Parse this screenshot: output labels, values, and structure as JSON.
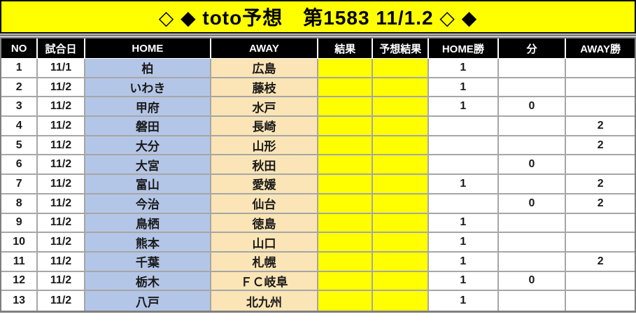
{
  "title": "◇ ◆ toto予想　第1583 11/1.2 ◇ ◆",
  "table": {
    "columns": [
      "NO",
      "試合日",
      "HOME",
      "AWAY",
      "結果",
      "予想結果",
      "HOME勝",
      "分",
      "AWAY勝"
    ],
    "rows": [
      {
        "no": "1",
        "date": "11/1",
        "home": "柏",
        "away": "広島",
        "result": "",
        "prediction": "",
        "home_win": "1",
        "draw": "",
        "away_win": ""
      },
      {
        "no": "2",
        "date": "11/2",
        "home": "いわき",
        "away": "藤枝",
        "result": "",
        "prediction": "",
        "home_win": "1",
        "draw": "",
        "away_win": ""
      },
      {
        "no": "3",
        "date": "11/2",
        "home": "甲府",
        "away": "水戸",
        "result": "",
        "prediction": "",
        "home_win": "1",
        "draw": "0",
        "away_win": ""
      },
      {
        "no": "4",
        "date": "11/2",
        "home": "磐田",
        "away": "長崎",
        "result": "",
        "prediction": "",
        "home_win": "",
        "draw": "",
        "away_win": "2"
      },
      {
        "no": "5",
        "date": "11/2",
        "home": "大分",
        "away": "山形",
        "result": "",
        "prediction": "",
        "home_win": "",
        "draw": "",
        "away_win": "2"
      },
      {
        "no": "6",
        "date": "11/2",
        "home": "大宮",
        "away": "秋田",
        "result": "",
        "prediction": "",
        "home_win": "",
        "draw": "0",
        "away_win": ""
      },
      {
        "no": "7",
        "date": "11/2",
        "home": "富山",
        "away": "愛媛",
        "result": "",
        "prediction": "",
        "home_win": "1",
        "draw": "",
        "away_win": "2"
      },
      {
        "no": "8",
        "date": "11/2",
        "home": "今治",
        "away": "仙台",
        "result": "",
        "prediction": "",
        "home_win": "",
        "draw": "0",
        "away_win": "2"
      },
      {
        "no": "9",
        "date": "11/2",
        "home": "鳥栖",
        "away": "徳島",
        "result": "",
        "prediction": "",
        "home_win": "1",
        "draw": "",
        "away_win": ""
      },
      {
        "no": "10",
        "date": "11/2",
        "home": "熊本",
        "away": "山口",
        "result": "",
        "prediction": "",
        "home_win": "1",
        "draw": "",
        "away_win": ""
      },
      {
        "no": "11",
        "date": "11/2",
        "home": "千葉",
        "away": "札幌",
        "result": "",
        "prediction": "",
        "home_win": "1",
        "draw": "",
        "away_win": "2"
      },
      {
        "no": "12",
        "date": "11/2",
        "home": "栃木",
        "away": "ＦＣ岐阜",
        "result": "",
        "prediction": "",
        "home_win": "1",
        "draw": "0",
        "away_win": ""
      },
      {
        "no": "13",
        "date": "11/2",
        "home": "八戸",
        "away": "北九州",
        "result": "",
        "prediction": "",
        "home_win": "1",
        "draw": "",
        "away_win": ""
      }
    ]
  },
  "colors": {
    "banner_bg": "#FFFF00",
    "banner_border": "#000000",
    "divider": "#808080",
    "header_bg": "#000000",
    "header_text": "#FFFFFF",
    "home_cell_bg": "#B4C6E7",
    "away_cell_bg": "#FBE5B6",
    "result_cell_bg": "#FFFF00",
    "row_border": "#A6A6A6",
    "outer_border": "#7F7F7F"
  }
}
